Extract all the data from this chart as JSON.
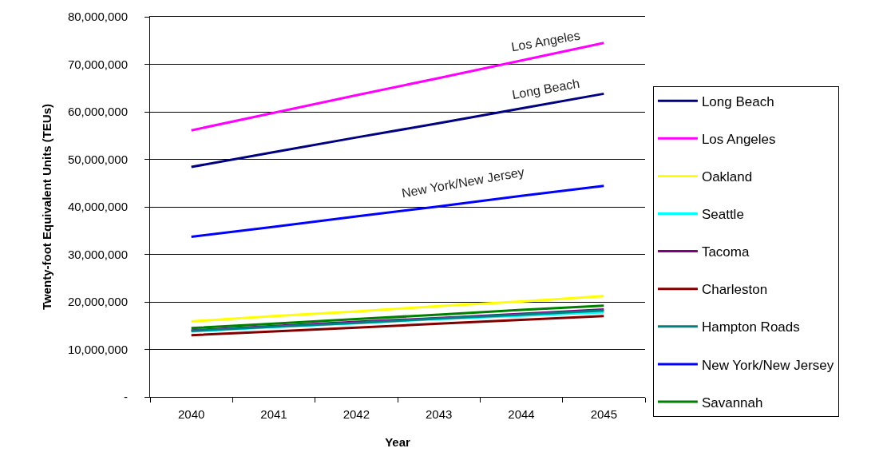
{
  "chart_data": {
    "type": "line",
    "xlabel": "Year",
    "ylabel": "Twenty-foot Equivalent Units (TEUs)",
    "categories": [
      "2040",
      "2041",
      "2042",
      "2043",
      "2044",
      "2045"
    ],
    "series": [
      {
        "name": "Long Beach",
        "color": "#000080",
        "values": [
          48400000,
          51500000,
          54600000,
          57600000,
          60700000,
          63800000
        ]
      },
      {
        "name": "Los Angeles",
        "color": "#ff00ff",
        "values": [
          56100000,
          59800000,
          63500000,
          67100000,
          70800000,
          74500000
        ]
      },
      {
        "name": "Oakland",
        "color": "#ffff00",
        "values": [
          15900000,
          17000000,
          18000000,
          19100000,
          20100000,
          21200000
        ]
      },
      {
        "name": "Seattle",
        "color": "#00ffff",
        "values": [
          13800000,
          14700000,
          15500000,
          16400000,
          17100000,
          17800000
        ]
      },
      {
        "name": "Tacoma",
        "color": "#800080",
        "values": [
          14000000,
          14900000,
          15800000,
          16600000,
          17500000,
          18400000
        ]
      },
      {
        "name": "Charleston",
        "color": "#800000",
        "values": [
          13000000,
          13800000,
          14600000,
          15400000,
          16200000,
          17000000
        ]
      },
      {
        "name": "Hampton Roads",
        "color": "#008080",
        "values": [
          13900000,
          14800000,
          15600000,
          16500000,
          17300000,
          18200000
        ]
      },
      {
        "name": "New York/New Jersey",
        "color": "#0000ff",
        "values": [
          33700000,
          35800000,
          38000000,
          40100000,
          42300000,
          44400000
        ]
      },
      {
        "name": "Savannah",
        "color": "#008000",
        "values": [
          14500000,
          15400000,
          16400000,
          17300000,
          18300000,
          19200000
        ]
      }
    ],
    "ylim": [
      0,
      80000000
    ],
    "yticks": [
      {
        "value": 0,
        "label": "-"
      },
      {
        "value": 10000000,
        "label": "10,000,000"
      },
      {
        "value": 20000000,
        "label": "20,000,000"
      },
      {
        "value": 30000000,
        "label": "30,000,000"
      },
      {
        "value": 40000000,
        "label": "40,000,000"
      },
      {
        "value": 50000000,
        "label": "50,000,000"
      },
      {
        "value": 60000000,
        "label": "60,000,000"
      },
      {
        "value": 70000000,
        "label": "70,000,000"
      },
      {
        "value": 80000000,
        "label": "80,000,000"
      }
    ],
    "annotations": [
      {
        "text": "Los Angeles",
        "x": "2044",
        "y": 70800000
      },
      {
        "text": "Long Beach",
        "x": "2044",
        "y": 60700000
      },
      {
        "text": "New York/New Jersey",
        "x": "2043",
        "y": 40100000
      }
    ],
    "grid": "y",
    "legend": "right",
    "line_style": "solid"
  }
}
